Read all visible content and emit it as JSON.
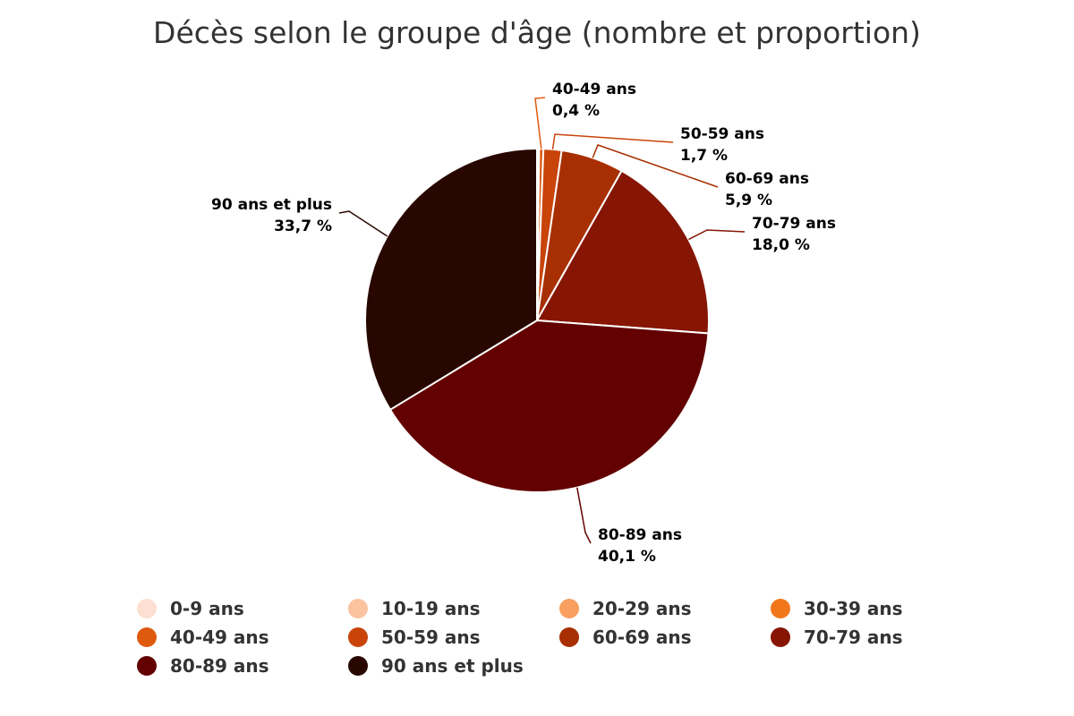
{
  "chart_data": {
    "type": "pie",
    "title": "Décès selon le groupe d'âge (nombre et proportion)",
    "categories": [
      "0-9 ans",
      "10-19 ans",
      "20-29 ans",
      "30-39 ans",
      "40-49 ans",
      "50-59 ans",
      "60-69 ans",
      "70-79 ans",
      "80-89 ans",
      "90 ans et plus"
    ],
    "values": [
      0,
      0,
      0.1,
      0.1,
      0.4,
      1.7,
      5.9,
      18.0,
      40.1,
      33.7
    ],
    "colors": [
      "#fde0d2",
      "#fcc3a0",
      "#f9a060",
      "#f2761b",
      "#de5a0f",
      "#c84409",
      "#a82f02",
      "#861504",
      "#630000",
      "#280700"
    ],
    "data_labels": [
      {
        "category": "40-49 ans",
        "value_text": "0,4 %"
      },
      {
        "category": "50-59 ans",
        "value_text": "1,7 %"
      },
      {
        "category": "60-69 ans",
        "value_text": "5,9 %"
      },
      {
        "category": "70-79 ans",
        "value_text": "18,0 %"
      },
      {
        "category": "80-89 ans",
        "value_text": "40,1 %"
      },
      {
        "category": "90 ans et plus",
        "value_text": "33,7 %"
      }
    ],
    "legend": {
      "position": "bottom",
      "items": [
        "0-9 ans",
        "10-19 ans",
        "20-29 ans",
        "30-39 ans",
        "40-49 ans",
        "50-59 ans",
        "60-69 ans",
        "70-79 ans",
        "80-89 ans",
        "90 ans et plus"
      ]
    },
    "slice_border_color": "#ffffff"
  }
}
